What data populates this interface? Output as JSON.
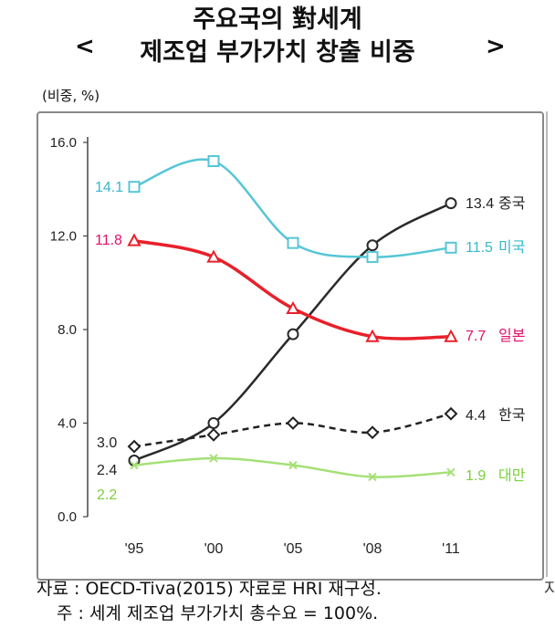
{
  "header": {
    "title_line1": "주요국의 對세계",
    "title_line2": "제조업 부가가치 창출 비중",
    "bracket_left": "<",
    "bracket_right": ">",
    "unit": "(비중, %)"
  },
  "footer": {
    "source": "자료 : OECD-Tiva(2015) 자료로 HRI 재구성.",
    "note": "주 : 세계 제조업 부가가치 총수요 = 100%.",
    "side_char": "자"
  },
  "chart_data": {
    "type": "line",
    "categories": [
      "'95",
      "'00",
      "'05",
      "'08",
      "'11"
    ],
    "ylim": [
      0,
      16
    ],
    "yticks": [
      "0.0",
      "4.0",
      "8.0",
      "12.0",
      "16.0"
    ],
    "grid": false,
    "series": [
      {
        "name": "중국",
        "values": [
          2.4,
          4.0,
          7.8,
          11.6,
          13.4
        ],
        "color": "#2a2a2a",
        "marker": "circle",
        "dash": false,
        "start_label": "2.4",
        "end_label": "13.4",
        "start_color": "#222222",
        "end_color": "#222222",
        "name_color": "#222222"
      },
      {
        "name": "미국",
        "values": [
          14.1,
          15.2,
          11.7,
          11.1,
          11.5
        ],
        "color": "#56c6d6",
        "marker": "square",
        "dash": false,
        "start_label": "14.1",
        "end_label": "11.5",
        "start_color": "#38b8cc",
        "end_color": "#38b8cc",
        "name_color": "#38b8cc"
      },
      {
        "name": "일본",
        "values": [
          11.8,
          11.1,
          8.9,
          7.7,
          7.7
        ],
        "color": "#e8202a",
        "marker": "triangle",
        "dash": false,
        "start_label": "11.8",
        "end_label": "7.7",
        "start_color": "#e0106a",
        "end_color": "#e0106a",
        "name_color": "#e0106a"
      },
      {
        "name": "한국",
        "values": [
          3.0,
          3.5,
          4.0,
          3.6,
          4.4
        ],
        "color": "#222222",
        "marker": "diamond",
        "dash": true,
        "start_label": "3.0",
        "end_label": "4.4",
        "start_color": "#222222",
        "end_color": "#222222",
        "name_color": "#222222"
      },
      {
        "name": "대만",
        "values": [
          2.2,
          2.5,
          2.2,
          1.7,
          1.9
        ],
        "color": "#a6e078",
        "marker": "x",
        "dash": false,
        "start_label": "2.2",
        "end_label": "1.9",
        "start_color": "#7ccf3c",
        "end_color": "#7ccf3c",
        "name_color": "#7ccf3c"
      }
    ]
  }
}
